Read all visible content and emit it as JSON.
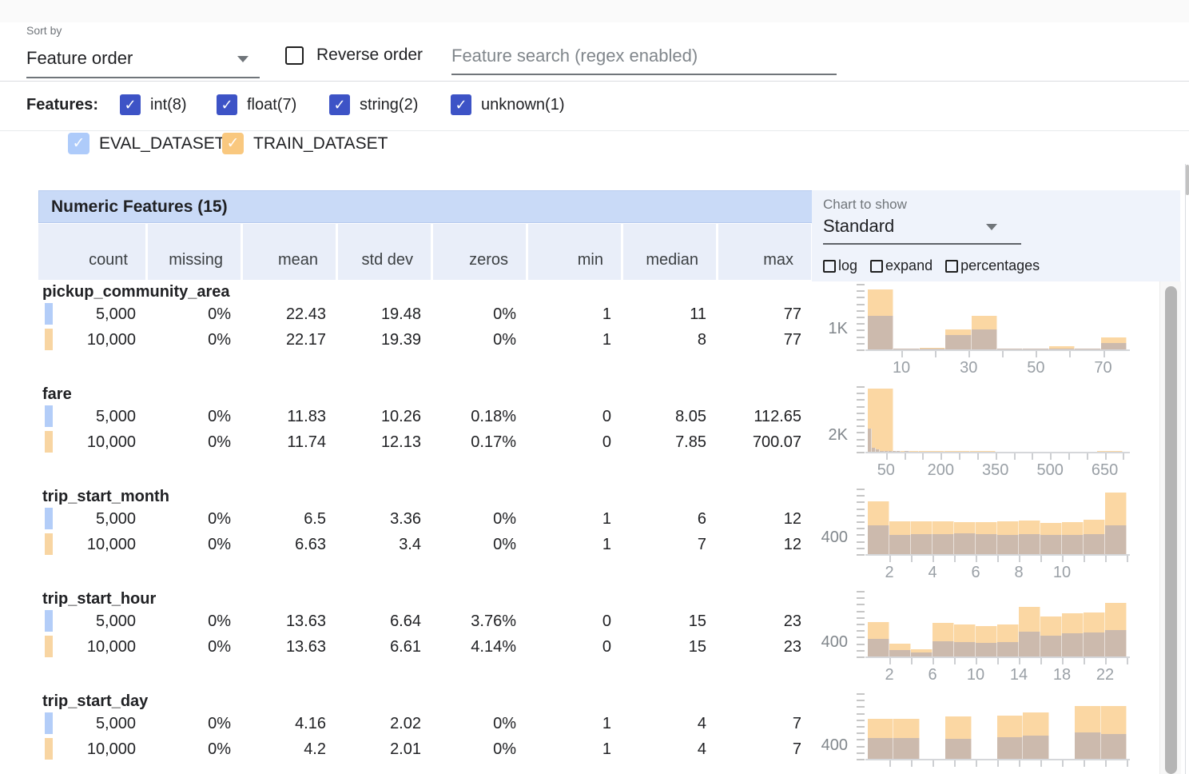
{
  "icons": {
    "checkmark": "✓",
    "dropdown_arrow": "▾"
  },
  "colors": {
    "eval": "#aecbfa",
    "train": "#f9c87f",
    "eval_swatch": "#b3cdf8",
    "train_swatch": "#f8d5a2",
    "hist_train_bar": "#fbd7a3",
    "hist_overlap_bar": "#ccbaad",
    "indigo_checkbox": "#3d53c6",
    "table_header_bg": "#c9daf7",
    "column_header_bg": "#e9eef9"
  },
  "toolbar": {
    "sort_by_label": "Sort by",
    "sort_value": "Feature order",
    "reverse_label": "Reverse order",
    "search_placeholder": "Feature search (regex enabled)"
  },
  "features_filter": {
    "label": "Features:",
    "types": [
      {
        "label": "int(8)",
        "checked": true
      },
      {
        "label": "float(7)",
        "checked": true
      },
      {
        "label": "string(2)",
        "checked": true
      },
      {
        "label": "unknown(1)",
        "checked": true
      }
    ]
  },
  "datasets": [
    {
      "name": "EVAL_DATASET",
      "checked": true,
      "color": "#aecbfa"
    },
    {
      "name": "TRAIN_DATASET",
      "checked": true,
      "color": "#f9c87f"
    }
  ],
  "table": {
    "title": "Numeric Features (15)",
    "columns": [
      "count",
      "missing",
      "mean",
      "std dev",
      "zeros",
      "min",
      "median",
      "max"
    ]
  },
  "chart_controls": {
    "label": "Chart to show",
    "value": "Standard",
    "options": [
      {
        "label": "log",
        "checked": false
      },
      {
        "label": "expand",
        "checked": false
      },
      {
        "label": "percentages",
        "checked": false
      }
    ]
  },
  "features": [
    {
      "name": "pickup_community_area",
      "rows": [
        {
          "dataset": "EVAL_DATASET",
          "values": [
            "5,000",
            "0%",
            "22.43",
            "19.48",
            "0%",
            "1",
            "11",
            "77"
          ]
        },
        {
          "dataset": "TRAIN_DATASET",
          "values": [
            "10,000",
            "0%",
            "22.17",
            "19.39",
            "0%",
            "1",
            "8",
            "77"
          ]
        }
      ]
    },
    {
      "name": "fare",
      "rows": [
        {
          "dataset": "EVAL_DATASET",
          "values": [
            "5,000",
            "0%",
            "11.83",
            "10.26",
            "0.18%",
            "0",
            "8.05",
            "112.65"
          ]
        },
        {
          "dataset": "TRAIN_DATASET",
          "values": [
            "10,000",
            "0%",
            "11.74",
            "12.13",
            "0.17%",
            "0",
            "7.85",
            "700.07"
          ]
        }
      ]
    },
    {
      "name": "trip_start_month",
      "rows": [
        {
          "dataset": "EVAL_DATASET",
          "values": [
            "5,000",
            "0%",
            "6.5",
            "3.36",
            "0%",
            "1",
            "6",
            "12"
          ]
        },
        {
          "dataset": "TRAIN_DATASET",
          "values": [
            "10,000",
            "0%",
            "6.63",
            "3.4",
            "0%",
            "1",
            "7",
            "12"
          ]
        }
      ]
    },
    {
      "name": "trip_start_hour",
      "rows": [
        {
          "dataset": "EVAL_DATASET",
          "values": [
            "5,000",
            "0%",
            "13.63",
            "6.64",
            "3.76%",
            "0",
            "15",
            "23"
          ]
        },
        {
          "dataset": "TRAIN_DATASET",
          "values": [
            "10,000",
            "0%",
            "13.63",
            "6.61",
            "4.14%",
            "0",
            "15",
            "23"
          ]
        }
      ]
    },
    {
      "name": "trip_start_day",
      "rows": [
        {
          "dataset": "EVAL_DATASET",
          "values": [
            "5,000",
            "0%",
            "4.16",
            "2.02",
            "0%",
            "1",
            "4",
            "7"
          ]
        },
        {
          "dataset": "TRAIN_DATASET",
          "values": [
            "10,000",
            "0%",
            "4.2",
            "2.01",
            "0%",
            "1",
            "4",
            "7"
          ]
        }
      ]
    }
  ],
  "chart_data": [
    {
      "type": "histogram",
      "feature": "pickup_community_area",
      "x_range": [
        0,
        77
      ],
      "tick_step": 10,
      "x_labels": [
        10,
        30,
        50,
        70
      ],
      "y_label": "1K",
      "y_label_value": 1000,
      "y_max": 3300,
      "series": [
        {
          "name": "TRAIN_DATASET",
          "color": "#fbd7a3",
          "bins": [
            [
              0,
              7.7,
              3000
            ],
            [
              7.7,
              15.4,
              60
            ],
            [
              15.4,
              23.1,
              90
            ],
            [
              23.1,
              30.8,
              1000
            ],
            [
              30.8,
              38.5,
              1700
            ],
            [
              38.5,
              46.2,
              50
            ],
            [
              46.2,
              53.9,
              40
            ],
            [
              53.9,
              61.6,
              170
            ],
            [
              61.6,
              69.3,
              40
            ],
            [
              69.3,
              77,
              620
            ]
          ]
        },
        {
          "name": "EVAL_DATASET",
          "color": "#ccbaad",
          "bins": [
            [
              0,
              7.7,
              1700
            ],
            [
              7.7,
              15.4,
              40
            ],
            [
              15.4,
              23.1,
              50
            ],
            [
              23.1,
              30.8,
              720
            ],
            [
              30.8,
              38.5,
              1000
            ],
            [
              38.5,
              46.2,
              30
            ],
            [
              46.2,
              53.9,
              20
            ],
            [
              53.9,
              61.6,
              60
            ],
            [
              61.6,
              69.3,
              20
            ],
            [
              69.3,
              77,
              330
            ]
          ]
        }
      ]
    },
    {
      "type": "histogram",
      "feature": "fare",
      "x_range": [
        0,
        710
      ],
      "tick_step": 50,
      "x_labels": [
        50,
        200,
        350,
        500,
        650
      ],
      "y_label": "2K",
      "y_label_value": 2000,
      "y_max": 8000,
      "series": [
        {
          "name": "TRAIN_DATASET",
          "color": "#fbd7a3",
          "bins": [
            [
              0,
              70,
              7700
            ],
            [
              70,
              140,
              140
            ],
            [
              140,
              210,
              40
            ],
            [
              210,
              280,
              15
            ],
            [
              280,
              350,
              8
            ],
            [
              630,
              700,
              10
            ]
          ]
        },
        {
          "name": "EVAL_DATASET",
          "color": "#ccbaad",
          "bins": [
            [
              0,
              11.3,
              2800
            ],
            [
              11.3,
              22.6,
              520
            ],
            [
              22.6,
              33.9,
              260
            ],
            [
              33.9,
              45.2,
              130
            ],
            [
              45.2,
              56.5,
              80
            ],
            [
              56.5,
              67.8,
              45
            ],
            [
              67.8,
              79.1,
              25
            ],
            [
              79.1,
              90.4,
              12
            ],
            [
              101.7,
              113,
              6
            ]
          ]
        }
      ]
    },
    {
      "type": "histogram",
      "feature": "trip_start_month",
      "x_range": [
        1,
        13
      ],
      "tick_step": 1,
      "x_labels": [
        2,
        4,
        6,
        8,
        10
      ],
      "y_label": "400",
      "y_label_value": 400,
      "y_max": 1650,
      "series": [
        {
          "name": "TRAIN_DATASET",
          "color": "#fbd7a3",
          "bins": [
            [
              1,
              2,
              1330
            ],
            [
              2,
              3,
              820
            ],
            [
              3,
              4,
              830
            ],
            [
              4,
              5,
              820
            ],
            [
              5,
              6,
              810
            ],
            [
              6,
              7,
              815
            ],
            [
              7,
              8,
              820
            ],
            [
              8,
              9,
              845
            ],
            [
              9,
              10,
              790
            ],
            [
              10,
              11,
              815
            ],
            [
              11,
              12,
              860
            ],
            [
              12,
              13,
              1540
            ]
          ]
        },
        {
          "name": "EVAL_DATASET",
          "color": "#ccbaad",
          "bins": [
            [
              1,
              2,
              715
            ],
            [
              2,
              3,
              485
            ],
            [
              3,
              4,
              500
            ],
            [
              4,
              5,
              505
            ],
            [
              5,
              6,
              515
            ],
            [
              6,
              7,
              505
            ],
            [
              7,
              8,
              490
            ],
            [
              8,
              9,
              495
            ],
            [
              9,
              10,
              480
            ],
            [
              10,
              11,
              485
            ],
            [
              11,
              12,
              505
            ],
            [
              12,
              13,
              715
            ]
          ]
        }
      ]
    },
    {
      "type": "histogram",
      "feature": "trip_start_hour",
      "x_range": [
        0,
        24
      ],
      "tick_step": 2,
      "x_labels": [
        2,
        6,
        10,
        14,
        18,
        22
      ],
      "y_label": "400",
      "y_label_value": 400,
      "y_max": 1900,
      "series": [
        {
          "name": "TRAIN_DATASET",
          "color": "#fbd7a3",
          "bins": [
            [
              0,
              2,
              1000
            ],
            [
              2,
              4,
              380
            ],
            [
              4,
              6,
              200
            ],
            [
              6,
              8,
              980
            ],
            [
              8,
              10,
              930
            ],
            [
              10,
              12,
              890
            ],
            [
              12,
              14,
              930
            ],
            [
              14,
              16,
              1440
            ],
            [
              16,
              18,
              1150
            ],
            [
              18,
              20,
              1240
            ],
            [
              20,
              22,
              1270
            ],
            [
              22,
              24,
              1550
            ]
          ]
        },
        {
          "name": "EVAL_DATASET",
          "color": "#ccbaad",
          "bins": [
            [
              0,
              2,
              510
            ],
            [
              2,
              4,
              190
            ],
            [
              4,
              6,
              110
            ],
            [
              6,
              8,
              430
            ],
            [
              8,
              10,
              420
            ],
            [
              10,
              12,
              400
            ],
            [
              12,
              14,
              420
            ],
            [
              14,
              16,
              710
            ],
            [
              16,
              18,
              600
            ],
            [
              18,
              20,
              665
            ],
            [
              20,
              22,
              685
            ],
            [
              22,
              24,
              775
            ]
          ]
        }
      ]
    },
    {
      "type": "histogram",
      "feature": "trip_start_day",
      "x_range": [
        1,
        7
      ],
      "tick_step": 0.5,
      "x_labels": [],
      "y_label": "400",
      "y_label_value": 400,
      "y_max": 2100,
      "series": [
        {
          "name": "TRAIN_DATASET",
          "color": "#fbd7a3",
          "bins": [
            [
              1,
              1.6,
              1280
            ],
            [
              1.6,
              2.2,
              1270
            ],
            [
              2.8,
              3.4,
              1350
            ],
            [
              4,
              4.6,
              1380
            ],
            [
              4.6,
              5.2,
              1480
            ],
            [
              5.8,
              6.4,
              1700
            ],
            [
              6.4,
              7,
              1680
            ]
          ]
        },
        {
          "name": "EVAL_DATASET",
          "color": "#ccbaad",
          "bins": [
            [
              1,
              1.6,
              670
            ],
            [
              1.6,
              2.2,
              660
            ],
            [
              2.8,
              3.4,
              630
            ],
            [
              4,
              4.6,
              700
            ],
            [
              4.6,
              5.2,
              750
            ],
            [
              5.8,
              6.4,
              850
            ],
            [
              6.4,
              7,
              800
            ]
          ]
        }
      ]
    }
  ]
}
